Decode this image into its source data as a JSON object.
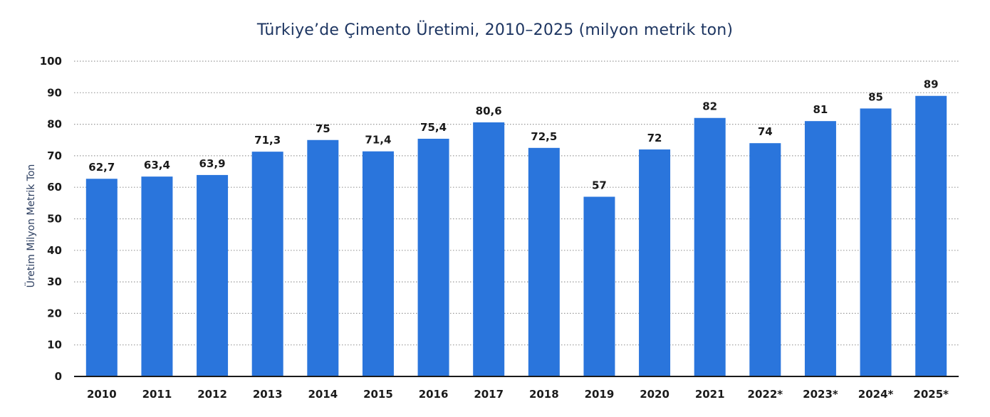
{
  "chart_data": {
    "type": "bar",
    "title": "Türkiye’de Çimento Üretimi, 2010–2025 (milyon metrik ton)",
    "xlabel": "",
    "ylabel": "Üretim Milyon Metrik Ton",
    "categories": [
      "2010",
      "2011",
      "2012",
      "2013",
      "2014",
      "2015",
      "2016",
      "2017",
      "2018",
      "2019",
      "2020",
      "2021",
      "2022*",
      "2023*",
      "2024*",
      "2025*"
    ],
    "values": [
      62.7,
      63.4,
      63.9,
      71.3,
      75,
      71.4,
      75.4,
      80.6,
      72.5,
      57,
      72,
      82,
      74,
      81,
      85,
      89
    ],
    "data_labels": [
      "62,7",
      "63,4",
      "63,9",
      "71,3",
      "75",
      "71,4",
      "75,4",
      "80,6",
      "72,5",
      "57",
      "72",
      "82",
      "74",
      "81",
      "85",
      "89"
    ],
    "y_ticks": [
      "0",
      "10",
      "20",
      "30",
      "40",
      "50",
      "60",
      "70",
      "80",
      "90",
      "100"
    ],
    "ylim": [
      0,
      100
    ],
    "grid": true,
    "legend": "none",
    "colors": {
      "bar": "#2a75dc",
      "grid": "#999999",
      "axis": "#1a1a1a",
      "title": "#1d3561"
    }
  }
}
